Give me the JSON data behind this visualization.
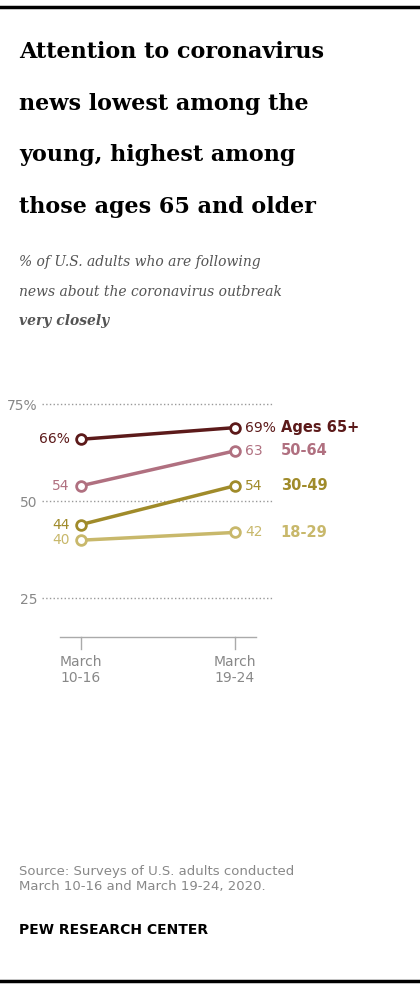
{
  "title_line1": "Attention to coronavirus",
  "title_line2": "news lowest among the",
  "title_line3": "young, highest among",
  "title_line4": "those ages 65 and older",
  "subtitle_line1": "% of U.S. adults who are following",
  "subtitle_line2": "news about the coronavirus outbreak",
  "subtitle_line3_italic": "very closely",
  "series": [
    {
      "label": "Ages 65+",
      "values": [
        66,
        69
      ],
      "color": "#5C1A1A",
      "left_label": "66%",
      "right_label": "69%"
    },
    {
      "label": "50-64",
      "values": [
        54,
        63
      ],
      "color": "#B07080",
      "left_label": "54",
      "right_label": "63"
    },
    {
      "label": "30-49",
      "values": [
        44,
        54
      ],
      "color": "#A08B2A",
      "left_label": "44",
      "right_label": "54"
    },
    {
      "label": "18-29",
      "values": [
        40,
        42
      ],
      "color": "#C8B86B",
      "left_label": "40",
      "right_label": "42"
    }
  ],
  "x_labels": [
    "March\n10-16",
    "March\n19-24"
  ],
  "x_positions": [
    0,
    1
  ],
  "yticks": [
    25,
    50,
    75
  ],
  "ylim": [
    15,
    85
  ],
  "source_text": "Source: Surveys of U.S. adults conducted\nMarch 10-16 and March 19-24, 2020.",
  "footer_text": "PEW RESEARCH CENTER",
  "background_color": "#FFFFFF",
  "title_color": "#000000",
  "subtitle_color": "#555555",
  "ytick_color": "#888888",
  "xtick_color": "#888888",
  "gridline_color": "#999999",
  "source_color": "#888888"
}
